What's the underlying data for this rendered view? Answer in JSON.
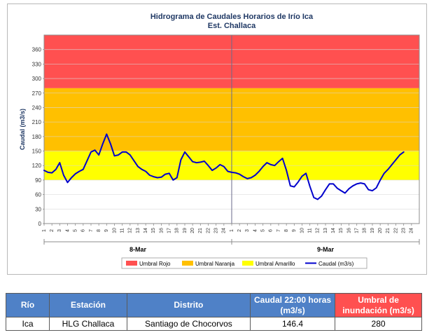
{
  "chart_data": {
    "type": "line",
    "title": "Hidrograma de Caudales Horarios de Irío Ica",
    "subtitle": "Est. Challaca",
    "ylabel": "Caudal  (m3/s)",
    "xlabel": "",
    "ylim": [
      0,
      390
    ],
    "yticks": [
      0,
      30,
      60,
      90,
      120,
      150,
      180,
      210,
      240,
      270,
      300,
      330,
      360
    ],
    "grid": true,
    "legend_position": "bottom",
    "days": [
      {
        "label": "8-Mar",
        "hours": [
          "1",
          "2",
          "3",
          "4",
          "5",
          "6",
          "7",
          "8",
          "9",
          "10",
          "11",
          "12",
          "13",
          "14",
          "15",
          "16",
          "17",
          "18",
          "19",
          "20",
          "21",
          "22",
          "23",
          "24"
        ]
      },
      {
        "label": "9-Mar",
        "hours": [
          "1",
          "2",
          "3",
          "4",
          "5",
          "6",
          "7",
          "8",
          "9",
          "10",
          "11",
          "12",
          "13",
          "14",
          "15",
          "16",
          "17",
          "18",
          "19",
          "20",
          "21",
          "22",
          "23",
          "24"
        ]
      }
    ],
    "bands": [
      {
        "name": "Umbral Rojo",
        "from": 280,
        "to": 390,
        "color": "#ff5050"
      },
      {
        "name": "Umbral Naranja",
        "from": 150,
        "to": 280,
        "color": "#ffc000"
      },
      {
        "name": "Umbral Amarillo",
        "from": 90,
        "to": 150,
        "color": "#ffff00"
      }
    ],
    "series": [
      {
        "name": "Caudal (m3/s)",
        "color": "#0000cc",
        "x": [
          0,
          0.5,
          1,
          1.5,
          2,
          2.5,
          3,
          3.5,
          4,
          4.5,
          5,
          5.5,
          6,
          6.5,
          7,
          7.5,
          8,
          8.5,
          9,
          9.5,
          10,
          10.5,
          11,
          11.5,
          12,
          12.5,
          13,
          13.5,
          14,
          14.5,
          15,
          15.5,
          16,
          16.5,
          17,
          17.5,
          18,
          18.5,
          19,
          19.5,
          20,
          20.5,
          21,
          21.5,
          22,
          22.5,
          23,
          23.5,
          24,
          24.5,
          25,
          25.5,
          26,
          26.5,
          27,
          27.5,
          28,
          28.5,
          29,
          29.5,
          30,
          30.5,
          31,
          31.5,
          32,
          32.5,
          33,
          33.5,
          34,
          34.5,
          35,
          35.5,
          36,
          36.5,
          37,
          37.5,
          38,
          38.5,
          39,
          39.5,
          40,
          40.5,
          41,
          41.5,
          42,
          42.5,
          43,
          43.5,
          44,
          44.5,
          45,
          45.5,
          46
        ],
        "y": [
          110,
          106,
          105,
          112,
          126,
          100,
          85,
          95,
          103,
          108,
          112,
          130,
          148,
          152,
          142,
          165,
          185,
          165,
          140,
          142,
          148,
          148,
          142,
          130,
          118,
          112,
          108,
          100,
          97,
          95,
          96,
          102,
          104,
          90,
          95,
          132,
          148,
          138,
          128,
          126,
          127,
          129,
          120,
          110,
          115,
          122,
          118,
          108,
          106,
          105,
          102,
          97,
          93,
          95,
          100,
          108,
          118,
          126,
          122,
          120,
          128,
          135,
          110,
          78,
          76,
          86,
          98,
          104,
          77,
          54,
          50,
          57,
          70,
          82,
          82,
          73,
          68,
          63,
          72,
          78,
          82,
          84,
          82,
          70,
          68,
          74,
          90,
          104,
          112,
          122,
          132,
          142,
          148
        ]
      }
    ]
  },
  "table": {
    "headers": [
      "Río",
      "Estación",
      "Distrito",
      "Caudal 22:00 horas (m3/s)",
      "Umbral de inundación (m3/s)"
    ],
    "rows": [
      [
        "Ica",
        "HLG Challaca",
        "Santiago de Chocorvos",
        "146.4",
        "280"
      ]
    ]
  }
}
